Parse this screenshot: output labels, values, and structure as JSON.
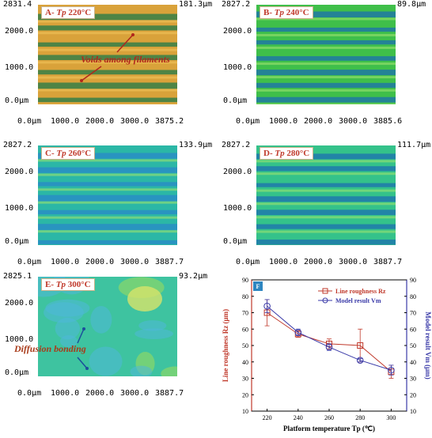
{
  "panels": [
    {
      "label_prefix": "A- ",
      "label_tp": "Tp",
      "label_temp": "220°C",
      "y_top": "2831.4",
      "z_max": "181.3μm",
      "y_ticks": [
        "2000.0",
        "1000.0",
        "0.0μm"
      ],
      "x_ticks": [
        "0.0μm",
        "1000.0",
        "2000.0",
        "3000.0",
        "3875.2"
      ],
      "annotation": "Voids among filaments",
      "color": "#d9a23a"
    },
    {
      "label_prefix": "B- ",
      "label_tp": "Tp",
      "label_temp": "240°C",
      "y_top": "2827.2",
      "z_max": "89.8μm",
      "y_ticks": [
        "2000.0",
        "1000.0",
        "0.0μm"
      ],
      "x_ticks": [
        "0.0μm",
        "1000.0",
        "2000.0",
        "3000.0",
        "3885.6"
      ],
      "color": "#3fbf4a"
    },
    {
      "label_prefix": "C- ",
      "label_tp": "Tp",
      "label_temp": "260°C",
      "y_top": "2827.2",
      "z_max": "133.9μm",
      "y_ticks": [
        "2000.0",
        "1000.0",
        "0.0μm"
      ],
      "x_ticks": [
        "0.0μm",
        "1000.0",
        "2000.0",
        "3000.0",
        "3887.7"
      ],
      "color": "#2bb7a6"
    },
    {
      "label_prefix": "D- ",
      "label_tp": "Tp",
      "label_temp": "280°C",
      "y_top": "2827.2",
      "z_max": "111.7μm",
      "y_ticks": [
        "2000.0",
        "1000.0",
        "0.0μm"
      ],
      "x_ticks": [
        "0.0μm",
        "1000.0",
        "2000.0",
        "3000.0",
        "3887.7"
      ],
      "color": "#34c28a"
    },
    {
      "label_prefix": "E- ",
      "label_tp": "Tp",
      "label_temp": "300°C",
      "y_top": "2825.1",
      "z_max": "93.2μm",
      "y_ticks": [
        "2000.0",
        "1000.0",
        "0.0μm"
      ],
      "x_ticks": [
        "0.0μm",
        "1000.0",
        "2000.0",
        "3000.0",
        "3887.7"
      ],
      "annotation": "Diffusion bonding",
      "color": "#3ec3a0"
    }
  ],
  "chart_data": {
    "type": "line",
    "panel_label": "F",
    "x": [
      220,
      240,
      260,
      280,
      300
    ],
    "xlabel": "Platform temperature Tp (℃)",
    "ylabel_left": "Line roughness Rz (μm)",
    "ylabel_right": "Model result Vm (μm)",
    "ylim": [
      10,
      90
    ],
    "y_ticks": [
      10,
      20,
      30,
      40,
      50,
      60,
      70,
      80,
      90
    ],
    "series": [
      {
        "name": "Line roughness Rz",
        "marker": "square",
        "color": "#c0392b",
        "values": [
          70,
          57,
          51,
          50,
          34
        ],
        "error": [
          8,
          2,
          3,
          10,
          4
        ]
      },
      {
        "name": "Model result Vm",
        "marker": "circle",
        "color": "#3a3aa8",
        "values": [
          74,
          58,
          49,
          41,
          35
        ],
        "error": [
          4,
          2,
          2,
          1,
          3
        ]
      }
    ],
    "legend_position": "top-right",
    "colors": {
      "left_axis": "#c0392b",
      "right_axis": "#3a3aa8",
      "panel_badge": "#2e86c1"
    }
  }
}
